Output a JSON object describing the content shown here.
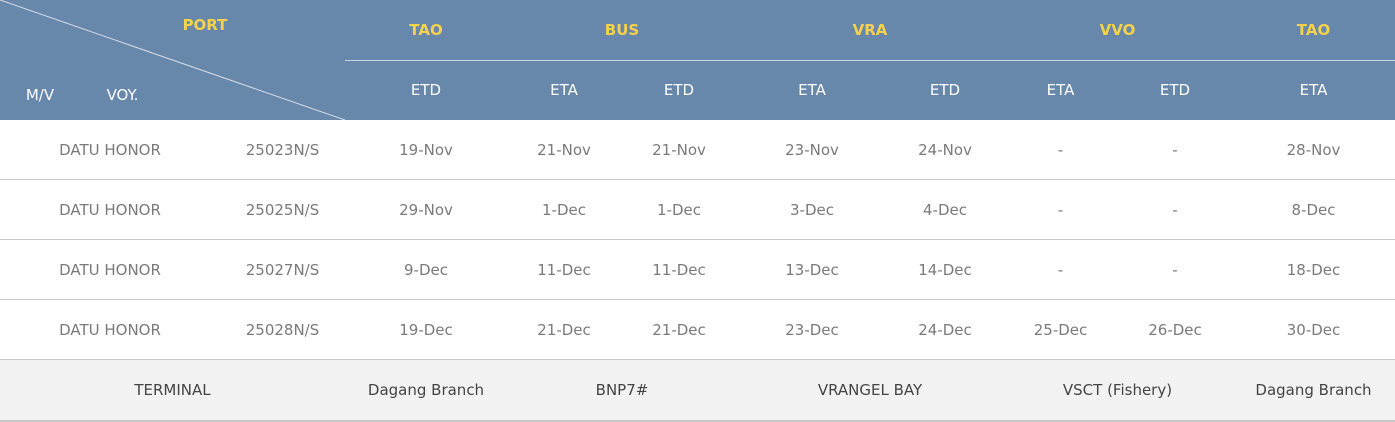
{
  "header": {
    "port_label": "PORT",
    "mv_label": "M/V",
    "voy_label": "VOY.",
    "ports": [
      "TAO",
      "BUS",
      "VRA",
      "VVO",
      "TAO"
    ],
    "subheaders": [
      "ETD",
      "ETA",
      "ETD",
      "ETA",
      "ETD",
      "ETA",
      "ETD",
      "ETA"
    ]
  },
  "rows": [
    {
      "vessel": "DATU HONOR",
      "voyage": "25023N/S",
      "times": [
        "19-Nov",
        "21-Nov",
        "21-Nov",
        "23-Nov",
        "24-Nov",
        "-",
        "-",
        "28-Nov"
      ]
    },
    {
      "vessel": "DATU HONOR",
      "voyage": "25025N/S",
      "times": [
        "29-Nov",
        "1-Dec",
        "1-Dec",
        "3-Dec",
        "4-Dec",
        "-",
        "-",
        "8-Dec"
      ]
    },
    {
      "vessel": "DATU HONOR",
      "voyage": "25027N/S",
      "times": [
        "9-Dec",
        "11-Dec",
        "11-Dec",
        "13-Dec",
        "14-Dec",
        "-",
        "-",
        "18-Dec"
      ]
    },
    {
      "vessel": "DATU HONOR",
      "voyage": "25028N/S",
      "times": [
        "19-Dec",
        "21-Dec",
        "21-Dec",
        "23-Dec",
        "24-Dec",
        "25-Dec",
        "26-Dec",
        "30-Dec"
      ]
    }
  ],
  "terminal": {
    "label": "TERMINAL",
    "values": [
      "Dagang Branch",
      "BNP7#",
      "VRANGEL BAY",
      "VSCT (Fishery)",
      "Dagang Branch"
    ]
  },
  "colors": {
    "header_bg": "#6787ab",
    "port_text": "#f5d24a",
    "terminal_bg": "#f2f2f2"
  }
}
